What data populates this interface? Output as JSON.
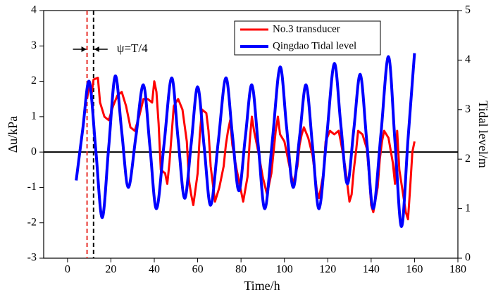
{
  "chart_data": {
    "type": "line",
    "xlabel": "Time/h",
    "ylabel": "Δu/kPa",
    "y2label": "Tidal level/m",
    "xlim": [
      -11,
      180
    ],
    "xticks": [
      0,
      20,
      40,
      60,
      80,
      100,
      120,
      140,
      160,
      180
    ],
    "ylim": [
      -3,
      4
    ],
    "yticks": [
      -3,
      -2,
      -1,
      0,
      1,
      2,
      3,
      4
    ],
    "y2lim": [
      0,
      5
    ],
    "y2ticks": [
      0,
      1,
      2,
      3,
      4,
      5
    ],
    "hline": 0,
    "legend": "upper right",
    "annotation": "ψ=T/4",
    "reference_lines": [
      {
        "x": 9,
        "color": "#e8302a"
      },
      {
        "x": 12,
        "color": "#000000"
      }
    ],
    "series": [
      {
        "name": "No.3 transducer",
        "color": "#ff0000",
        "x": [
          9,
          10,
          11,
          12,
          14,
          15,
          17,
          19,
          21,
          23,
          25,
          27,
          29,
          31,
          33,
          35,
          37,
          39,
          40,
          41,
          42,
          43,
          45,
          46,
          47,
          48,
          49,
          51,
          53,
          55,
          56,
          57,
          58,
          60,
          61,
          62,
          64,
          65,
          66,
          67,
          68,
          70,
          72,
          73,
          74,
          75,
          76,
          78,
          80,
          81,
          83,
          84,
          85,
          86,
          88,
          90,
          92,
          94,
          95,
          96,
          97,
          98,
          100,
          102,
          104,
          106,
          107,
          108,
          109,
          111,
          113,
          115,
          116,
          118,
          119,
          121,
          123,
          125,
          126,
          128,
          130,
          131,
          132,
          133,
          134,
          136,
          138,
          139,
          140,
          141,
          143,
          144,
          145,
          146,
          148,
          150,
          151,
          152,
          153,
          155,
          156,
          157,
          158,
          159,
          160
        ],
        "values": [
          1.5,
          1.9,
          1.6,
          2.05,
          2.1,
          1.4,
          1.0,
          0.9,
          1.3,
          1.6,
          1.7,
          1.3,
          0.7,
          0.6,
          1.0,
          1.5,
          1.5,
          1.4,
          2.0,
          1.7,
          0.8,
          -0.5,
          -0.6,
          -0.9,
          -0.3,
          0.5,
          1.3,
          1.5,
          1.2,
          0.3,
          -0.8,
          -1.2,
          -1.5,
          -0.6,
          0.5,
          1.2,
          1.1,
          0.6,
          -0.4,
          -0.9,
          -1.4,
          -1.0,
          -0.4,
          0.2,
          0.6,
          0.9,
          0.2,
          -0.5,
          -1.1,
          -1.4,
          -0.7,
          0.3,
          1.0,
          0.6,
          0.0,
          -0.7,
          -1.2,
          -0.6,
          0.0,
          0.6,
          1.0,
          0.5,
          0.3,
          -0.3,
          -0.9,
          -0.4,
          0.2,
          0.5,
          0.7,
          0.4,
          -0.1,
          -1.1,
          -1.3,
          -0.6,
          0.3,
          0.6,
          0.5,
          0.6,
          0.3,
          -0.4,
          -1.4,
          -1.2,
          -0.5,
          0.0,
          0.6,
          0.5,
          0.1,
          -0.6,
          -1.5,
          -1.7,
          -1.0,
          -0.2,
          0.3,
          0.6,
          0.4,
          -0.3,
          -0.9,
          0.6,
          -0.5,
          -1.3,
          -1.7,
          -1.9,
          -1.0,
          0.0,
          0.3
        ]
      },
      {
        "name": "Qingdao Tidal level",
        "color": "#0000ff",
        "axis": "y2",
        "x": [
          4,
          7,
          10,
          13,
          16,
          19,
          22,
          25,
          28,
          31.5,
          35,
          38,
          41,
          44.5,
          48,
          51,
          54,
          57,
          60,
          63,
          66,
          69.5,
          73,
          76,
          79,
          82,
          85,
          88,
          91,
          94.5,
          98,
          101,
          104,
          107,
          110,
          113,
          116,
          119.5,
          123,
          126,
          129,
          132,
          135,
          138,
          141,
          144.5,
          148,
          151,
          154,
          157,
          160
        ],
        "values": [
          1.57,
          2.6,
          3.57,
          2.2,
          0.82,
          2.25,
          3.68,
          2.55,
          1.43,
          2.45,
          3.5,
          2.25,
          1.0,
          2.3,
          3.64,
          2.4,
          1.21,
          2.3,
          3.46,
          2.25,
          1.07,
          2.35,
          3.64,
          2.5,
          1.36,
          2.45,
          3.5,
          2.25,
          1.0,
          2.4,
          3.86,
          2.65,
          1.43,
          2.45,
          3.5,
          2.25,
          1.0,
          2.45,
          3.93,
          2.7,
          1.5,
          2.6,
          3.71,
          2.35,
          1.0,
          2.5,
          4.07,
          2.35,
          0.64,
          2.4,
          4.14
        ]
      }
    ]
  }
}
